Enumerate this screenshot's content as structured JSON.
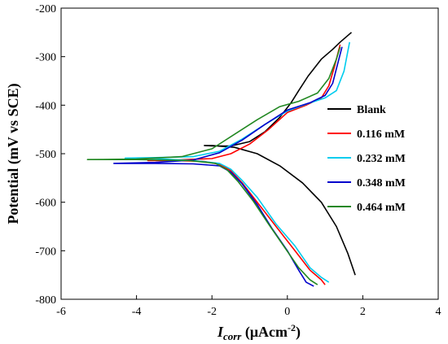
{
  "chart_data": {
    "type": "line",
    "title": "",
    "xlabel": {
      "italic": "I",
      "sub": "corr",
      "rest": " (μAcm",
      "sup": "-2",
      "close": ")"
    },
    "ylabel": "Potential (mV vs SCE)",
    "xlim": [
      -6,
      4
    ],
    "ylim": [
      -800,
      -200
    ],
    "x_ticks": [
      -6,
      -4,
      -2,
      0,
      2,
      4
    ],
    "y_ticks": [
      -200,
      -300,
      -400,
      -500,
      -600,
      -700,
      -800
    ],
    "grid": false,
    "legend_position": "right",
    "series": [
      {
        "name": "Blank",
        "color": "#000000",
        "values": [
          [
            1.8,
            -750
          ],
          [
            1.6,
            -705
          ],
          [
            1.3,
            -650
          ],
          [
            0.9,
            -600
          ],
          [
            0.4,
            -560
          ],
          [
            -0.2,
            -525
          ],
          [
            -0.8,
            -500
          ],
          [
            -1.4,
            -487
          ],
          [
            -2.0,
            -483
          ],
          [
            -2.2,
            -483
          ],
          [
            -2.0,
            -484
          ],
          [
            -1.5,
            -484
          ],
          [
            -1.0,
            -475
          ],
          [
            -0.6,
            -455
          ],
          [
            -0.2,
            -425
          ],
          [
            0.1,
            -395
          ],
          [
            0.3,
            -370
          ],
          [
            0.55,
            -340
          ],
          [
            0.9,
            -305
          ],
          [
            1.2,
            -285
          ],
          [
            1.4,
            -270
          ],
          [
            1.7,
            -250
          ]
        ]
      },
      {
        "name": "0.116 mM",
        "color": "#ff0000",
        "values": [
          [
            1.0,
            -770
          ],
          [
            0.9,
            -760
          ],
          [
            0.6,
            -740
          ],
          [
            0.2,
            -700
          ],
          [
            -0.3,
            -650
          ],
          [
            -0.8,
            -600
          ],
          [
            -1.2,
            -560
          ],
          [
            -1.5,
            -535
          ],
          [
            -1.8,
            -522
          ],
          [
            -2.2,
            -516
          ],
          [
            -3.0,
            -514
          ],
          [
            -3.7,
            -514
          ],
          [
            -3.0,
            -513
          ],
          [
            -2.0,
            -510
          ],
          [
            -1.5,
            -500
          ],
          [
            -1.0,
            -480
          ],
          [
            -0.5,
            -450
          ],
          [
            0.0,
            -415
          ],
          [
            0.5,
            -400
          ],
          [
            0.9,
            -385
          ],
          [
            1.1,
            -360
          ],
          [
            1.25,
            -320
          ],
          [
            1.35,
            -290
          ],
          [
            1.4,
            -275
          ]
        ]
      },
      {
        "name": "0.232 mM",
        "color": "#00ccee",
        "values": [
          [
            1.1,
            -765
          ],
          [
            0.9,
            -755
          ],
          [
            0.6,
            -735
          ],
          [
            0.2,
            -690
          ],
          [
            -0.3,
            -645
          ],
          [
            -0.8,
            -590
          ],
          [
            -1.2,
            -555
          ],
          [
            -1.5,
            -532
          ],
          [
            -1.8,
            -520
          ],
          [
            -2.5,
            -514
          ],
          [
            -3.5,
            -510
          ],
          [
            -4.3,
            -509
          ],
          [
            -3.5,
            -508
          ],
          [
            -2.5,
            -506
          ],
          [
            -1.8,
            -495
          ],
          [
            -1.2,
            -470
          ],
          [
            -0.6,
            -440
          ],
          [
            0.0,
            -412
          ],
          [
            0.5,
            -398
          ],
          [
            1.0,
            -385
          ],
          [
            1.3,
            -370
          ],
          [
            1.5,
            -330
          ],
          [
            1.6,
            -290
          ],
          [
            1.65,
            -270
          ]
        ]
      },
      {
        "name": "0.348 mM",
        "color": "#0000cc",
        "values": [
          [
            0.7,
            -773
          ],
          [
            0.5,
            -765
          ],
          [
            0.3,
            -740
          ],
          [
            0.0,
            -700
          ],
          [
            -0.4,
            -655
          ],
          [
            -0.8,
            -605
          ],
          [
            -1.2,
            -562
          ],
          [
            -1.5,
            -538
          ],
          [
            -1.8,
            -525
          ],
          [
            -2.5,
            -521
          ],
          [
            -3.5,
            -520
          ],
          [
            -4.6,
            -520
          ],
          [
            -3.5,
            -518
          ],
          [
            -2.5,
            -513
          ],
          [
            -1.8,
            -498
          ],
          [
            -1.2,
            -472
          ],
          [
            -0.6,
            -440
          ],
          [
            0.0,
            -410
          ],
          [
            0.6,
            -395
          ],
          [
            1.0,
            -380
          ],
          [
            1.2,
            -355
          ],
          [
            1.35,
            -310
          ],
          [
            1.45,
            -280
          ]
        ]
      },
      {
        "name": "0.464 mM",
        "color": "#228822",
        "values": [
          [
            0.8,
            -770
          ],
          [
            0.6,
            -760
          ],
          [
            0.3,
            -735
          ],
          [
            -0.1,
            -690
          ],
          [
            -0.5,
            -645
          ],
          [
            -0.9,
            -598
          ],
          [
            -1.3,
            -558
          ],
          [
            -1.6,
            -533
          ],
          [
            -1.9,
            -520
          ],
          [
            -2.6,
            -514
          ],
          [
            -4.0,
            -512
          ],
          [
            -5.3,
            -512
          ],
          [
            -4.0,
            -511
          ],
          [
            -2.8,
            -506
          ],
          [
            -2.0,
            -490
          ],
          [
            -1.4,
            -460
          ],
          [
            -0.8,
            -430
          ],
          [
            -0.2,
            -403
          ],
          [
            0.3,
            -392
          ],
          [
            0.8,
            -375
          ],
          [
            1.1,
            -345
          ],
          [
            1.3,
            -305
          ],
          [
            1.4,
            -280
          ]
        ]
      }
    ]
  }
}
